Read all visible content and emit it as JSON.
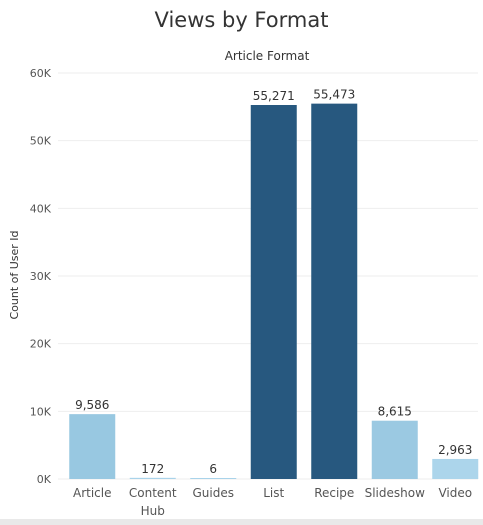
{
  "chart_data": {
    "type": "bar",
    "title": "Views by Format",
    "column_header": "Article Format",
    "xlabel": "",
    "ylabel": "Count of User Id",
    "ylim": [
      0,
      60000
    ],
    "yticks": [
      0,
      10000,
      20000,
      30000,
      40000,
      50000,
      60000
    ],
    "ytick_labels": [
      "0K",
      "10K",
      "20K",
      "30K",
      "40K",
      "50K",
      "60K"
    ],
    "grid": true,
    "categories": [
      "Article",
      "Content\nHub",
      "Guides",
      "List",
      "Recipe",
      "Slideshow",
      "Video"
    ],
    "values": [
      9586,
      172,
      6,
      55271,
      55473,
      8615,
      2963
    ],
    "value_labels": [
      "9,586",
      "172",
      "6",
      "55,271",
      "55,473",
      "8,615",
      "2,963"
    ],
    "bar_colors": [
      "#98c8e1",
      "#a9d3ea",
      "#a9d3ea",
      "#27587f",
      "#27587f",
      "#9bc9e2",
      "#acd5eb"
    ]
  },
  "colors": {
    "text": "#333333",
    "axis_text": "#555555",
    "grid": "#eeeeee"
  }
}
